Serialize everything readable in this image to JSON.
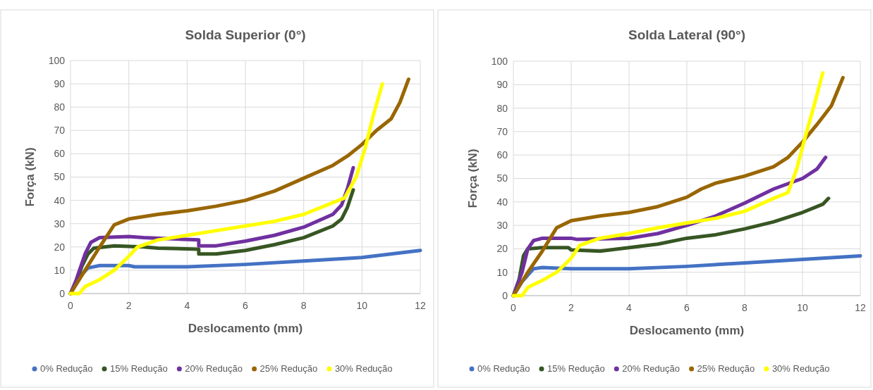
{
  "chart_data": [
    {
      "type": "line",
      "title": "Solda  Superior (0°)",
      "xlabel": "Deslocamento (mm)",
      "ylabel": "Força (kN)",
      "xlim": [
        0,
        12
      ],
      "xticks": [
        0,
        2,
        4,
        6,
        8,
        10,
        12
      ],
      "ylim": [
        0,
        100
      ],
      "yticks": [
        0,
        10,
        20,
        30,
        40,
        50,
        60,
        70,
        80,
        90,
        100
      ],
      "grid": true,
      "legend": "bottom",
      "marker": "none",
      "line_style": "solid",
      "series": [
        {
          "name": "0% Redução",
          "color": "#4472c4",
          "x": [
            0,
            0.3,
            0.6,
            1,
            2,
            2.2,
            4,
            6,
            8,
            10,
            12
          ],
          "values": [
            0,
            7,
            11,
            12,
            12,
            11.5,
            11.5,
            12.5,
            14,
            15.5,
            18.5
          ]
        },
        {
          "name": "15% Redução",
          "color": "#375623",
          "x": [
            0,
            0.2,
            0.4,
            0.6,
            0.8,
            1.5,
            2.5,
            3,
            4.4,
            4.4,
            5,
            6,
            7,
            8,
            9,
            9.3,
            9.5,
            9.7
          ],
          "values": [
            0,
            5,
            12,
            17,
            19.5,
            20.5,
            20,
            19.5,
            19,
            17,
            17,
            18.5,
            21,
            24,
            29,
            32,
            37,
            44.5
          ]
        },
        {
          "name": "20% Redução",
          "color": "#7030a0",
          "x": [
            0,
            0.2,
            0.5,
            0.7,
            1,
            2,
            2.5,
            4.4,
            4.4,
            5,
            6,
            7,
            8,
            9,
            9.3,
            9.5,
            9.7
          ],
          "values": [
            0,
            6,
            17,
            22,
            24,
            24.5,
            24,
            23,
            20.5,
            20.5,
            22.5,
            25,
            28.5,
            34,
            38,
            45,
            54
          ]
        },
        {
          "name": "25% Redução",
          "color": "#996600",
          "x": [
            0,
            0.5,
            1,
            1.5,
            2,
            3,
            4,
            5,
            6,
            7,
            8,
            9,
            9.5,
            10,
            10.5,
            11,
            11.3,
            11.6
          ],
          "values": [
            0,
            10,
            20,
            29.5,
            32,
            34,
            35.5,
            37.5,
            40,
            44,
            49.5,
            55,
            59,
            64,
            70,
            75,
            82,
            92
          ]
        },
        {
          "name": "30% Redução",
          "color": "#ffff00",
          "x": [
            0,
            0.3,
            0.5,
            1,
            1.5,
            2,
            2.3,
            3,
            4,
            5,
            6,
            7,
            8,
            9,
            9.4,
            9.8,
            10.1,
            10.4,
            10.7
          ],
          "values": [
            0,
            0,
            3,
            6,
            10,
            16,
            20,
            23,
            25,
            27,
            29,
            31,
            34,
            39,
            41,
            50,
            62,
            77,
            90
          ]
        }
      ]
    },
    {
      "type": "line",
      "title": "Solda  Lateral (90°)",
      "xlabel": "Deslocamento (mm)",
      "ylabel": "Força (kN)",
      "xlim": [
        0,
        12
      ],
      "xticks": [
        0,
        2,
        4,
        6,
        8,
        10,
        12
      ],
      "ylim": [
        0,
        100
      ],
      "yticks": [
        0,
        10,
        20,
        30,
        40,
        50,
        60,
        70,
        80,
        90,
        100
      ],
      "grid": true,
      "legend": "bottom",
      "marker": "none",
      "line_style": "solid",
      "series": [
        {
          "name": "0% Redução",
          "color": "#4472c4",
          "x": [
            0,
            0.3,
            0.7,
            1,
            2,
            4,
            6,
            8,
            10,
            12
          ],
          "values": [
            0,
            6,
            11.5,
            12,
            11.5,
            11.5,
            12.5,
            14,
            15.5,
            17
          ]
        },
        {
          "name": "15% Redução",
          "color": "#375623",
          "x": [
            0,
            0.2,
            0.35,
            0.5,
            1,
            1.9,
            2,
            3,
            4,
            5,
            6,
            7,
            8,
            9,
            10,
            10.7,
            10.9
          ],
          "values": [
            0,
            7,
            17,
            20,
            20.5,
            20.5,
            19.5,
            19,
            20.5,
            22,
            24.5,
            26,
            28.5,
            31.5,
            35.5,
            39,
            41.5
          ]
        },
        {
          "name": "20% Redução",
          "color": "#7030a0",
          "x": [
            0,
            0.3,
            0.5,
            0.7,
            1,
            2,
            2.2,
            4,
            5,
            6,
            7,
            8,
            9,
            10,
            10.5,
            10.8
          ],
          "values": [
            0,
            10,
            20,
            23.5,
            24.5,
            24.5,
            24,
            24.5,
            26.5,
            30,
            34,
            39.5,
            45.5,
            50,
            54,
            59
          ]
        },
        {
          "name": "25% Redução",
          "color": "#996600",
          "x": [
            0,
            0.5,
            1,
            1.5,
            2,
            3,
            4,
            5,
            6,
            6.5,
            7,
            8,
            9,
            9.5,
            10,
            10.5,
            11,
            11.4
          ],
          "values": [
            0,
            10,
            19,
            29,
            32,
            34,
            35.5,
            38,
            42,
            45.5,
            48,
            51,
            55,
            59,
            65.5,
            73,
            81,
            93
          ]
        },
        {
          "name": "30% Redução",
          "color": "#ffff00",
          "x": [
            0,
            0.3,
            0.5,
            1,
            1.5,
            2,
            2.3,
            3,
            4,
            5,
            6,
            7,
            8,
            9,
            9.5,
            9.8,
            10.1,
            10.4,
            10.7
          ],
          "values": [
            0,
            0,
            3.5,
            6.5,
            10,
            16,
            21.5,
            24.5,
            26.5,
            29,
            31,
            33,
            36,
            41.5,
            44,
            54,
            68,
            81,
            95
          ]
        }
      ]
    }
  ]
}
